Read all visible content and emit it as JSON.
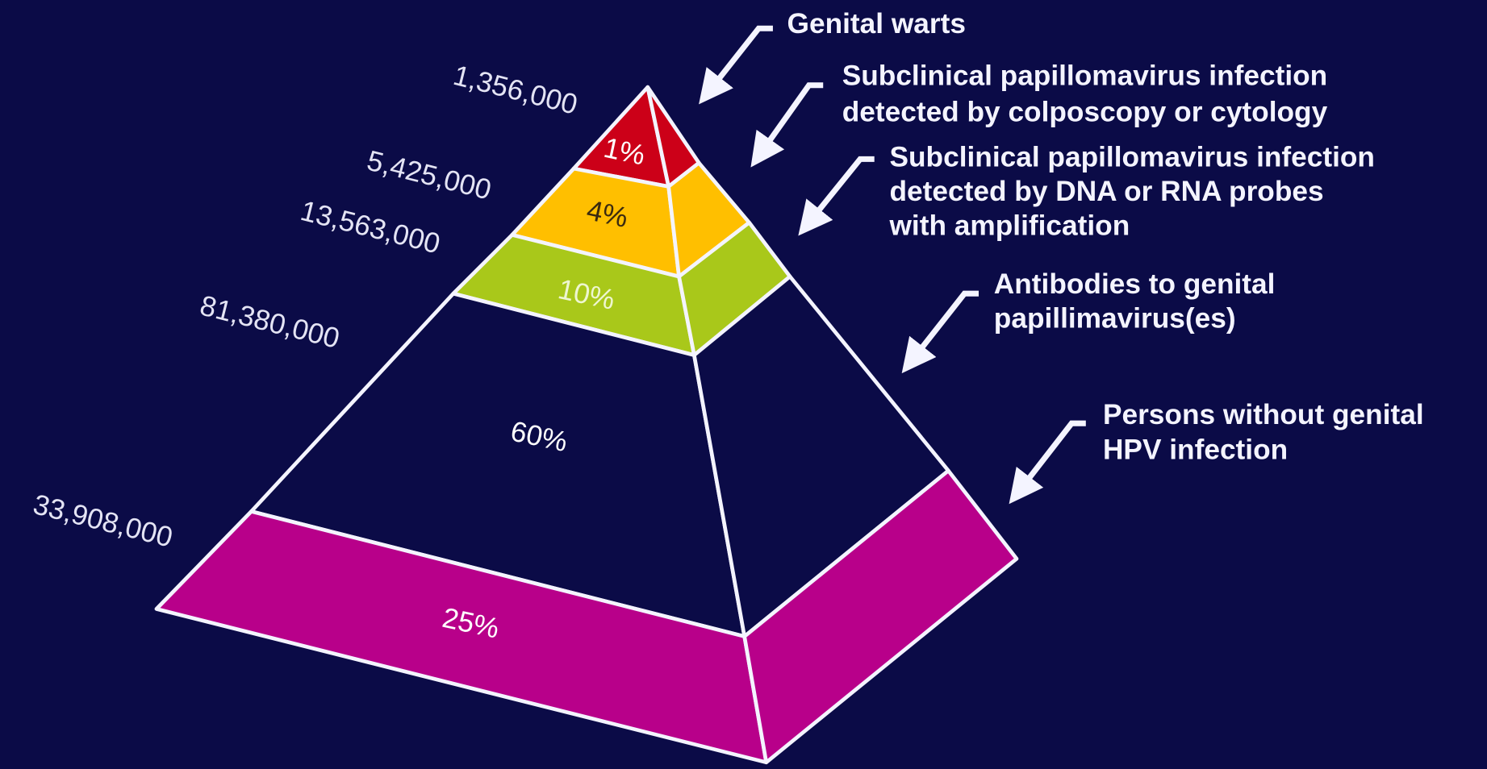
{
  "layers": [
    {
      "count": "1,356,000",
      "percent": "1%",
      "description": [
        "Genital warts"
      ]
    },
    {
      "count": "5,425,000",
      "percent": "4%",
      "description": [
        "Subclinical papillomavirus infection",
        "detected by colposcopy or cytology"
      ]
    },
    {
      "count": "13,563,000",
      "percent": "10%",
      "description": [
        "Subclinical papillomavirus infection",
        "detected by DNA or RNA probes",
        "with amplification"
      ]
    },
    {
      "count": "81,380,000",
      "percent": "60%",
      "description": [
        "Antibodies to genital",
        "papillimavirus(es)"
      ]
    },
    {
      "count": "33,908,000",
      "percent": "25%",
      "description": [
        "Persons without genital",
        "HPV infection"
      ]
    }
  ]
}
